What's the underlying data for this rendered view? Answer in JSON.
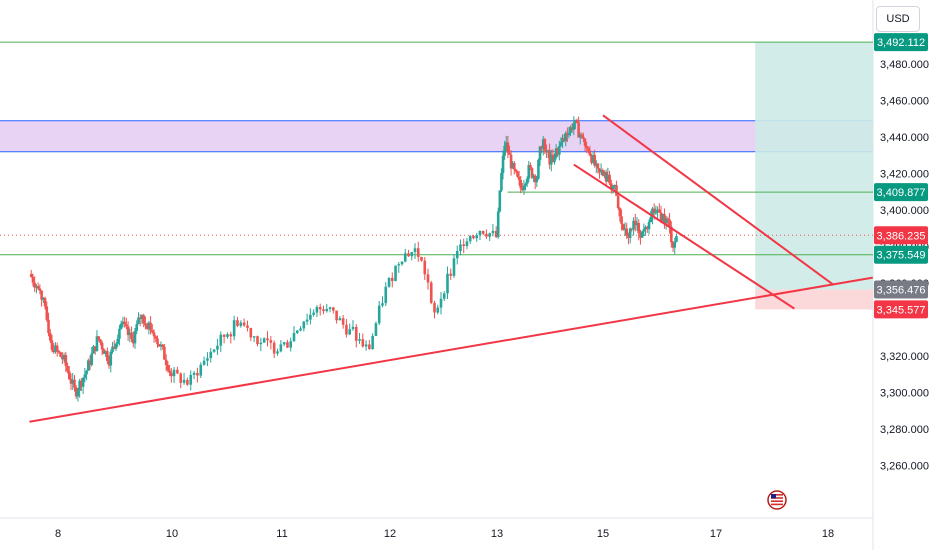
{
  "currency_button": "USD",
  "colors": {
    "up": "#26a69a",
    "down": "#ef5350",
    "trend": "#f23645",
    "level_green": "#4caf50",
    "zone_fill": "#e1c4f0",
    "zone_border": "#2962ff",
    "target_fill": "#cdebe7",
    "stop_fill": "#fbd5d6",
    "badge_green": "#089981",
    "badge_red": "#f23645",
    "badge_gray": "#787b86"
  },
  "chart_data": {
    "type": "candlestick",
    "x_axis": {
      "ticks": [
        "8",
        "10",
        "11",
        "12",
        "13",
        "15",
        "17",
        "18"
      ]
    },
    "y_axis": {
      "range": [
        3250,
        3500
      ],
      "ticks": [
        "3,260.000",
        "3,280.000",
        "3,300.000",
        "3,320.000",
        "3,360.000",
        "3,380.000",
        "3,400.000",
        "3,420.000",
        "3,440.000",
        "3,460.000",
        "3,480.000"
      ]
    },
    "price_badges": [
      {
        "label": "3,492.112",
        "value": 3492.112,
        "color": "green"
      },
      {
        "label": "3,409.877",
        "value": 3409.877,
        "color": "green"
      },
      {
        "label": "3,386.235",
        "value": 3386.235,
        "color": "red"
      },
      {
        "label": "3,375.549",
        "value": 3375.549,
        "color": "green"
      },
      {
        "label": "3,356.476",
        "value": 3356.476,
        "color": "gray"
      },
      {
        "label": "3,345.577",
        "value": 3345.577,
        "color": "red"
      }
    ],
    "horizontal_levels": [
      {
        "price": 3492.112,
        "color": "green"
      },
      {
        "price": 3375.549,
        "color": "green"
      },
      {
        "price": 3409.877,
        "color": "green",
        "from_day": 13.2
      }
    ],
    "current_price": 3386.235,
    "resistance_zone": [
      3432,
      3449
    ],
    "position": {
      "entry": 3356.476,
      "target": 3492.112,
      "stop": 3345.577,
      "from_day": 17.35,
      "to_day": 17.95
    },
    "trendlines": [
      {
        "from": [
          7.5,
          3284
        ],
        "to": [
          18.4,
          3363
        ]
      },
      {
        "from": [
          14.45,
          3425
        ],
        "to": [
          17.7,
          3346
        ]
      },
      {
        "from": [
          15.0,
          3452
        ],
        "to": [
          18.05,
          3359
        ]
      }
    ],
    "price_series": [
      [
        7.5,
        3365
      ],
      [
        7.7,
        3355
      ],
      [
        7.9,
        3325
      ],
      [
        8.1,
        3318
      ],
      [
        8.3,
        3300
      ],
      [
        8.5,
        3312
      ],
      [
        8.7,
        3330
      ],
      [
        8.9,
        3318
      ],
      [
        9.1,
        3338
      ],
      [
        9.3,
        3328
      ],
      [
        9.45,
        3342
      ],
      [
        9.6,
        3337
      ],
      [
        9.8,
        3325
      ],
      [
        10.0,
        3310
      ],
      [
        10.15,
        3305
      ],
      [
        10.35,
        3322
      ],
      [
        10.6,
        3340
      ],
      [
        10.8,
        3328
      ],
      [
        11.0,
        3323
      ],
      [
        11.2,
        3340
      ],
      [
        11.4,
        3348
      ],
      [
        11.6,
        3335
      ],
      [
        11.8,
        3323
      ],
      [
        11.95,
        3355
      ],
      [
        12.1,
        3375
      ],
      [
        12.25,
        3378
      ],
      [
        12.35,
        3362
      ],
      [
        12.4,
        3340
      ],
      [
        12.55,
        3365
      ],
      [
        12.7,
        3385
      ],
      [
        12.85,
        3390
      ],
      [
        13.0,
        3385
      ],
      [
        13.05,
        3410
      ],
      [
        13.15,
        3438
      ],
      [
        13.3,
        3422
      ],
      [
        13.45,
        3412
      ],
      [
        13.6,
        3422
      ],
      [
        13.75,
        3418
      ],
      [
        13.85,
        3440
      ],
      [
        14.0,
        3426
      ],
      [
        14.15,
        3433
      ],
      [
        14.3,
        3440
      ],
      [
        14.45,
        3448
      ],
      [
        14.6,
        3440
      ],
      [
        14.75,
        3432
      ],
      [
        14.9,
        3420
      ],
      [
        15.05,
        3418
      ],
      [
        15.2,
        3412
      ],
      [
        15.3,
        3395
      ],
      [
        15.4,
        3386
      ],
      [
        15.55,
        3392
      ],
      [
        15.7,
        3387
      ],
      [
        15.85,
        3400
      ],
      [
        16.0,
        3398
      ],
      [
        16.15,
        3393
      ],
      [
        16.25,
        3380
      ],
      [
        16.3,
        3386
      ]
    ]
  }
}
